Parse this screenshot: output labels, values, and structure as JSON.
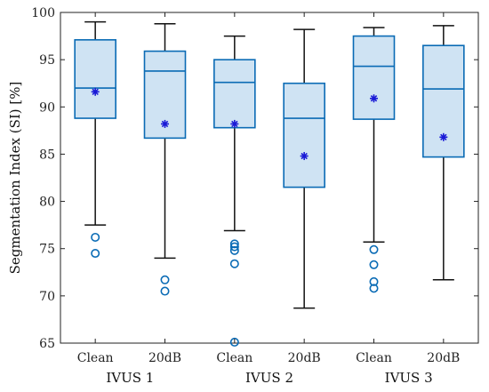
{
  "chart_data": {
    "type": "box",
    "ylabel": "Segmentation Index (SI) [%]",
    "ylim": [
      65,
      100
    ],
    "yticks": [
      65,
      70,
      75,
      80,
      85,
      90,
      95,
      100
    ],
    "categories": [
      "Clean",
      "20dB",
      "Clean",
      "20dB",
      "Clean",
      "20dB"
    ],
    "groups": [
      "IVUS 1",
      "IVUS 2",
      "IVUS 3"
    ],
    "colors": {
      "box_fill": "#cfe3f3",
      "box_edge": "#0a6bb5",
      "median": "#0a6bb5",
      "mean_marker": "#1a1ad6",
      "whisker": "#111111",
      "outlier": "#0a6bb5"
    },
    "boxes": [
      {
        "group": "IVUS 1",
        "category": "Clean",
        "q1": 88.8,
        "median": 92.0,
        "q3": 97.1,
        "whisker_low": 77.5,
        "whisker_high": 99.0,
        "mean": 91.6,
        "outliers": [
          76.2,
          74.5
        ]
      },
      {
        "group": "IVUS 1",
        "category": "20dB",
        "q1": 86.7,
        "median": 93.8,
        "q3": 95.9,
        "whisker_low": 74.0,
        "whisker_high": 98.8,
        "mean": 88.2,
        "outliers": [
          71.7,
          70.5
        ]
      },
      {
        "group": "IVUS 2",
        "category": "Clean",
        "q1": 87.8,
        "median": 92.6,
        "q3": 95.0,
        "whisker_low": 76.9,
        "whisker_high": 97.5,
        "mean": 88.2,
        "outliers": [
          75.5,
          75.2,
          74.8,
          73.4,
          65.1
        ]
      },
      {
        "group": "IVUS 2",
        "category": "20dB",
        "q1": 81.5,
        "median": 88.8,
        "q3": 92.5,
        "whisker_low": 68.7,
        "whisker_high": 98.2,
        "mean": 84.8,
        "outliers": []
      },
      {
        "group": "IVUS 3",
        "category": "Clean",
        "q1": 88.7,
        "median": 94.3,
        "q3": 97.5,
        "whisker_low": 75.7,
        "whisker_high": 98.4,
        "mean": 90.9,
        "outliers": [
          74.9,
          73.3,
          71.5,
          70.8
        ]
      },
      {
        "group": "IVUS 3",
        "category": "20dB",
        "q1": 84.7,
        "median": 91.9,
        "q3": 96.5,
        "whisker_low": 71.7,
        "whisker_high": 98.6,
        "mean": 86.8,
        "outliers": []
      }
    ]
  }
}
